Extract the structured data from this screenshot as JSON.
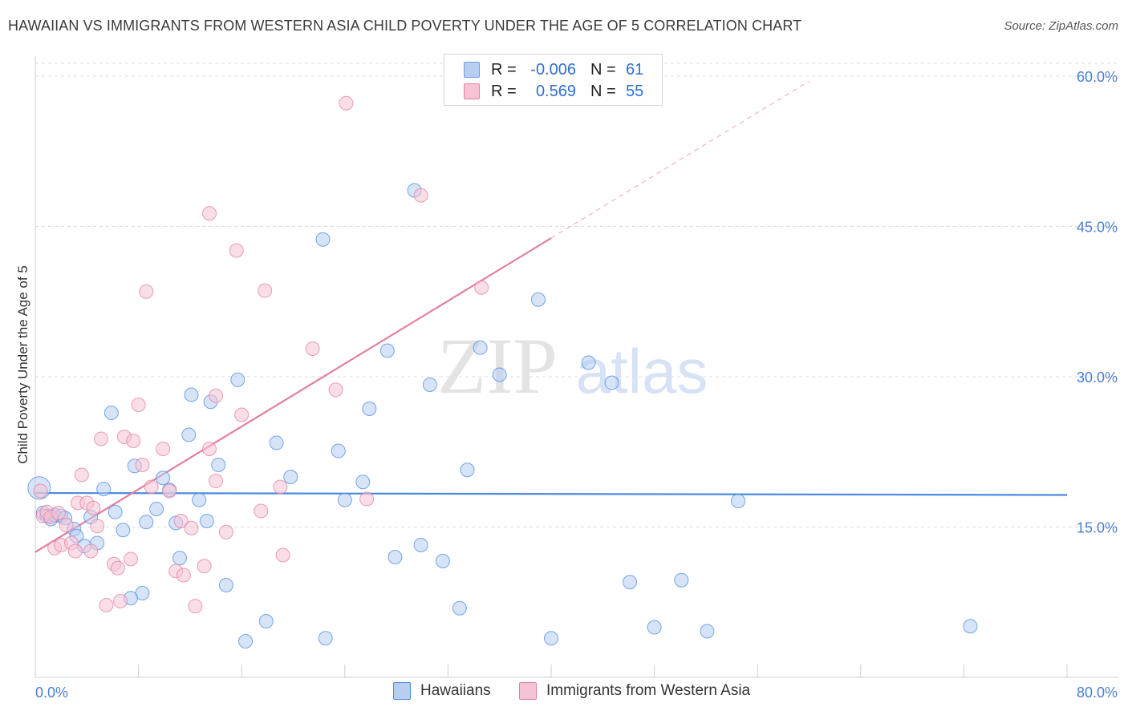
{
  "title": "HAWAIIAN VS IMMIGRANTS FROM WESTERN ASIA CHILD POVERTY UNDER THE AGE OF 5 CORRELATION CHART",
  "source": "Source: ZipAtlas.com",
  "watermark": {
    "zip": "ZIP",
    "atlas": "atlas"
  },
  "legend_stats": [
    {
      "r_label": "R =",
      "r_value": "-0.006",
      "n_label": "N =",
      "n_value": "61",
      "color": "#6e9de0",
      "fill": "#b7cdf2"
    },
    {
      "r_label": "R =",
      "r_value": "0.569",
      "n_label": "N =",
      "n_value": "55",
      "color": "#e37fa0",
      "fill": "#f6c3d4"
    }
  ],
  "chart_data": {
    "type": "scatter",
    "title": "HAWAIIAN VS IMMIGRANTS FROM WESTERN ASIA CHILD POVERTY UNDER THE AGE OF 5 CORRELATION CHART",
    "xlabel": "",
    "ylabel": "Child Poverty Under the Age of 5",
    "xlim": [
      0,
      80
    ],
    "ylim": [
      0,
      62
    ],
    "x_tick_labels": [
      "0.0%",
      "80.0%"
    ],
    "y_ticks": [
      15,
      30,
      45,
      60
    ],
    "y_tick_labels": [
      "15.0%",
      "30.0%",
      "45.0%",
      "60.0%"
    ],
    "grid": true,
    "legend_position": "bottom",
    "series": [
      {
        "name": "Hawaiians",
        "color": "#4d8be0",
        "fill": "#b7cdf2",
        "trend": {
          "x": [
            0,
            80
          ],
          "y": [
            18.4,
            18.2
          ],
          "solid_to": 80
        },
        "points": [
          [
            0.3,
            18.9
          ],
          [
            0.6,
            16.4
          ],
          [
            0.9,
            16.1
          ],
          [
            1.2,
            15.8
          ],
          [
            1.5,
            16.2
          ],
          [
            2.0,
            16.1
          ],
          [
            2.3,
            15.9
          ],
          [
            3.0,
            14.8
          ],
          [
            3.2,
            14.1
          ],
          [
            3.8,
            13.1
          ],
          [
            4.3,
            16.0
          ],
          [
            4.8,
            13.4
          ],
          [
            5.3,
            18.8
          ],
          [
            5.9,
            26.4
          ],
          [
            6.2,
            16.5
          ],
          [
            6.8,
            14.7
          ],
          [
            7.7,
            21.1
          ],
          [
            8.3,
            8.4
          ],
          [
            7.4,
            7.9
          ],
          [
            8.6,
            15.5
          ],
          [
            9.4,
            16.8
          ],
          [
            9.9,
            19.9
          ],
          [
            10.4,
            18.7
          ],
          [
            10.9,
            15.4
          ],
          [
            11.2,
            11.9
          ],
          [
            11.9,
            24.2
          ],
          [
            12.1,
            28.2
          ],
          [
            12.7,
            17.7
          ],
          [
            13.3,
            15.6
          ],
          [
            13.6,
            27.5
          ],
          [
            14.2,
            21.2
          ],
          [
            14.8,
            9.2
          ],
          [
            15.7,
            29.7
          ],
          [
            16.3,
            3.6
          ],
          [
            17.9,
            5.6
          ],
          [
            18.7,
            23.4
          ],
          [
            19.8,
            20.0
          ],
          [
            22.3,
            43.7
          ],
          [
            22.5,
            3.9
          ],
          [
            23.5,
            22.6
          ],
          [
            24.0,
            17.7
          ],
          [
            25.4,
            19.5
          ],
          [
            25.9,
            26.8
          ],
          [
            27.3,
            32.6
          ],
          [
            27.9,
            12.0
          ],
          [
            29.4,
            48.6
          ],
          [
            29.9,
            13.2
          ],
          [
            30.6,
            29.2
          ],
          [
            31.6,
            11.6
          ],
          [
            32.9,
            6.9
          ],
          [
            33.5,
            20.7
          ],
          [
            34.5,
            32.9
          ],
          [
            36.0,
            30.2
          ],
          [
            39.0,
            37.7
          ],
          [
            40.0,
            3.9
          ],
          [
            42.9,
            31.4
          ],
          [
            44.7,
            29.4
          ],
          [
            46.1,
            9.5
          ],
          [
            48.0,
            5.0
          ],
          [
            50.1,
            9.7
          ],
          [
            52.1,
            4.6
          ],
          [
            54.5,
            17.6
          ],
          [
            72.5,
            5.1
          ]
        ]
      },
      {
        "name": "Immigrants from Western Asia",
        "color": "#e37fa0",
        "fill": "#f6c3d4",
        "trend": {
          "x": [
            0,
            60
          ],
          "y": [
            12.5,
            59.5
          ],
          "solid_to": 40
        },
        "points": [
          [
            0.4,
            18.6
          ],
          [
            0.6,
            16.1
          ],
          [
            0.9,
            16.5
          ],
          [
            1.2,
            16.0
          ],
          [
            1.5,
            12.9
          ],
          [
            1.8,
            16.4
          ],
          [
            2.0,
            13.2
          ],
          [
            2.4,
            15.2
          ],
          [
            2.8,
            13.4
          ],
          [
            3.1,
            12.6
          ],
          [
            3.3,
            17.4
          ],
          [
            3.6,
            20.2
          ],
          [
            4.0,
            17.4
          ],
          [
            4.3,
            12.6
          ],
          [
            4.5,
            16.9
          ],
          [
            4.8,
            15.1
          ],
          [
            5.1,
            23.8
          ],
          [
            5.5,
            7.2
          ],
          [
            6.1,
            11.3
          ],
          [
            6.4,
            10.9
          ],
          [
            6.6,
            7.6
          ],
          [
            6.9,
            24.0
          ],
          [
            7.4,
            11.8
          ],
          [
            7.6,
            23.6
          ],
          [
            8.0,
            27.2
          ],
          [
            8.3,
            21.2
          ],
          [
            8.6,
            38.5
          ],
          [
            9.0,
            19.0
          ],
          [
            9.9,
            22.8
          ],
          [
            10.4,
            18.6
          ],
          [
            10.9,
            10.6
          ],
          [
            11.3,
            15.6
          ],
          [
            11.5,
            10.2
          ],
          [
            12.1,
            14.9
          ],
          [
            12.4,
            7.1
          ],
          [
            13.1,
            11.1
          ],
          [
            13.5,
            46.3
          ],
          [
            13.5,
            22.8
          ],
          [
            14.0,
            19.6
          ],
          [
            14.0,
            28.1
          ],
          [
            14.8,
            14.5
          ],
          [
            15.6,
            42.6
          ],
          [
            16.0,
            26.2
          ],
          [
            17.5,
            16.6
          ],
          [
            17.8,
            38.6
          ],
          [
            19.0,
            19.0
          ],
          [
            19.2,
            12.2
          ],
          [
            21.5,
            32.8
          ],
          [
            23.3,
            28.7
          ],
          [
            24.1,
            57.3
          ],
          [
            25.7,
            17.8
          ],
          [
            29.9,
            48.1
          ],
          [
            34.6,
            38.9
          ]
        ]
      }
    ]
  }
}
